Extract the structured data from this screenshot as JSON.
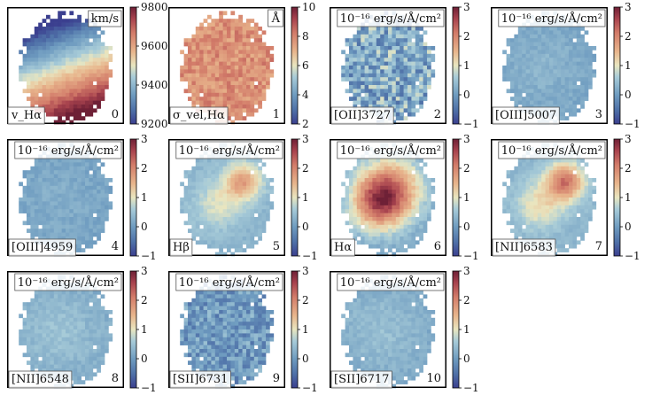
{
  "chart_data": {
    "type": "heatmap",
    "colormap": "diverging blue-white-red",
    "panels": [
      {
        "index": "0",
        "label": "v_Hα",
        "unit": "km/s",
        "vmin": 9200,
        "vmax": 9800,
        "ticks": [
          "9800",
          "9600",
          "9400",
          "9200"
        ],
        "tick_values": [
          9800,
          9600,
          9400,
          9200
        ],
        "pattern": "velocity_gradient",
        "mean": 0.45,
        "contrast": 0.55
      },
      {
        "index": "1",
        "label": "σ_vel,Hα",
        "unit": "Å",
        "vmin": 2,
        "vmax": 10,
        "ticks": [
          "10",
          "8",
          "6",
          "4",
          "2"
        ],
        "tick_values": [
          10,
          8,
          6,
          4,
          2
        ],
        "pattern": "uniform_noisy",
        "mean": 0.72,
        "contrast": 0.1
      },
      {
        "index": "2",
        "label": "[OII]3727",
        "unit": "10⁻¹⁶ erg/s/Å/cm²",
        "vmin": -1,
        "vmax": 3,
        "ticks": [
          "3",
          "2",
          "1",
          "0",
          "−1"
        ],
        "tick_values": [
          3,
          2,
          1,
          0,
          -1
        ],
        "pattern": "noisy",
        "mean": 0.3,
        "contrast": 0.18
      },
      {
        "index": "3",
        "label": "[OIII]5007",
        "unit": "10⁻¹⁶ erg/s/Å/cm²",
        "vmin": -1,
        "vmax": 3,
        "ticks": [
          "3",
          "2",
          "1",
          "0",
          "−1"
        ],
        "tick_values": [
          3,
          2,
          1,
          0,
          -1
        ],
        "pattern": "faint",
        "mean": 0.28,
        "contrast": 0.05
      },
      {
        "index": "4",
        "label": "[OIII]4959",
        "unit": "10⁻¹⁶ erg/s/Å/cm²",
        "vmin": -1,
        "vmax": 3,
        "ticks": [
          "3",
          "2",
          "1",
          "0",
          "−1"
        ],
        "tick_values": [
          3,
          2,
          1,
          0,
          -1
        ],
        "pattern": "faint",
        "mean": 0.27,
        "contrast": 0.04
      },
      {
        "index": "5",
        "label": "Hβ",
        "unit": "10⁻¹⁶ erg/s/Å/cm²",
        "vmin": -1,
        "vmax": 3,
        "ticks": [
          "3",
          "2",
          "1",
          "0",
          "−1"
        ],
        "tick_values": [
          3,
          2,
          1,
          0,
          -1
        ],
        "pattern": "knot",
        "mean": 0.33,
        "contrast": 0.25
      },
      {
        "index": "6",
        "label": "Hα",
        "unit": "10⁻¹⁶ erg/s/Å/cm²",
        "vmin": -1,
        "vmax": 3,
        "ticks": [
          "3",
          "2",
          "1",
          "0",
          "−1"
        ],
        "tick_values": [
          3,
          2,
          1,
          0,
          -1
        ],
        "pattern": "strong",
        "mean": 0.45,
        "contrast": 0.55
      },
      {
        "index": "7",
        "label": "[NII]6583",
        "unit": "10⁻¹⁶ erg/s/Å/cm²",
        "vmin": -1,
        "vmax": 3,
        "ticks": [
          "3",
          "2",
          "1",
          "0",
          "−1"
        ],
        "tick_values": [
          3,
          2,
          1,
          0,
          -1
        ],
        "pattern": "knot",
        "mean": 0.33,
        "contrast": 0.33
      },
      {
        "index": "8",
        "label": "[NII]6548",
        "unit": "10⁻¹⁶ erg/s/Å/cm²",
        "vmin": -1,
        "vmax": 3,
        "ticks": [
          "3",
          "2",
          "1",
          "0",
          "−1"
        ],
        "tick_values": [
          3,
          2,
          1,
          0,
          -1
        ],
        "pattern": "faint",
        "mean": 0.3,
        "contrast": 0.08
      },
      {
        "index": "9",
        "label": "[SII]6731",
        "unit": "10⁻¹⁶ erg/s/Å/cm²",
        "vmin": -1,
        "vmax": 3,
        "ticks": [
          "3",
          "2",
          "1",
          "0",
          "−1"
        ],
        "tick_values": [
          3,
          2,
          1,
          0,
          -1
        ],
        "pattern": "noisy",
        "mean": 0.25,
        "contrast": 0.12
      },
      {
        "index": "10",
        "label": "[SII]6717",
        "unit": "10⁻¹⁶ erg/s/Å/cm²",
        "vmin": -1,
        "vmax": 3,
        "ticks": [
          "3",
          "2",
          "1",
          "0",
          "−1"
        ],
        "tick_values": [
          3,
          2,
          1,
          0,
          -1
        ],
        "pattern": "faint",
        "mean": 0.29,
        "contrast": 0.08
      }
    ]
  }
}
